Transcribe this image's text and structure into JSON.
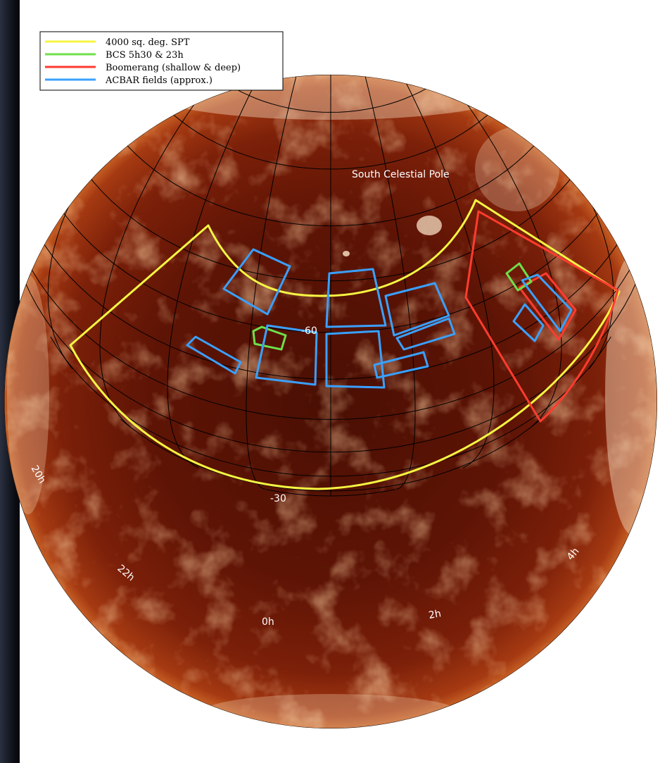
{
  "legend": {
    "items": [
      {
        "label": "4000 sq. deg. SPT",
        "color": "#f5f542"
      },
      {
        "label": "BCS 5h30 & 23h",
        "color": "#6ee04a"
      },
      {
        "label": "Boomerang (shallow & deep)",
        "color": "#ff3b2f"
      },
      {
        "label": "ACBAR fields (approx.)",
        "color": "#3aa0ff"
      }
    ]
  },
  "map": {
    "pole_label": "South Celestial Pole",
    "dec_labels": [
      "-60",
      "-30"
    ],
    "ra_labels": [
      "20h",
      "22h",
      "0h",
      "2h",
      "4h"
    ],
    "colors": {
      "sphere_core": "#5a1204",
      "sphere_mid": "#7a1c08",
      "sphere_edge": "#c8501c",
      "dust_bright": "#f7e6cf",
      "grid": "#000000"
    }
  }
}
